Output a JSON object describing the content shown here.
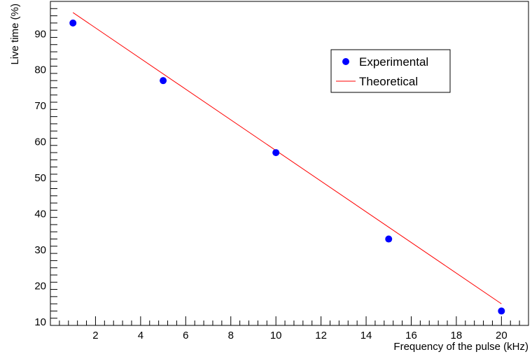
{
  "chart_data": {
    "type": "scatter",
    "xlabel": "Frequency of the pulse (kHz)",
    "ylabel": "Live time (%)",
    "xlim": [
      0,
      21.2
    ],
    "ylim": [
      9,
      99
    ],
    "x_ticks": [
      2,
      4,
      6,
      8,
      10,
      12,
      14,
      16,
      18,
      20
    ],
    "y_ticks": [
      10,
      20,
      30,
      40,
      50,
      60,
      70,
      80,
      90
    ],
    "grid": false,
    "legend_position": "top-right",
    "series": [
      {
        "name": "Experimental",
        "kind": "points",
        "color": "#0000ff",
        "x": [
          1,
          5,
          10,
          15,
          20
        ],
        "y": [
          93,
          77,
          57,
          33,
          13
        ]
      },
      {
        "name": "Theoretical",
        "kind": "line",
        "color": "#ff0000",
        "x": [
          1,
          20
        ],
        "y": [
          95.9,
          15
        ]
      }
    ]
  }
}
